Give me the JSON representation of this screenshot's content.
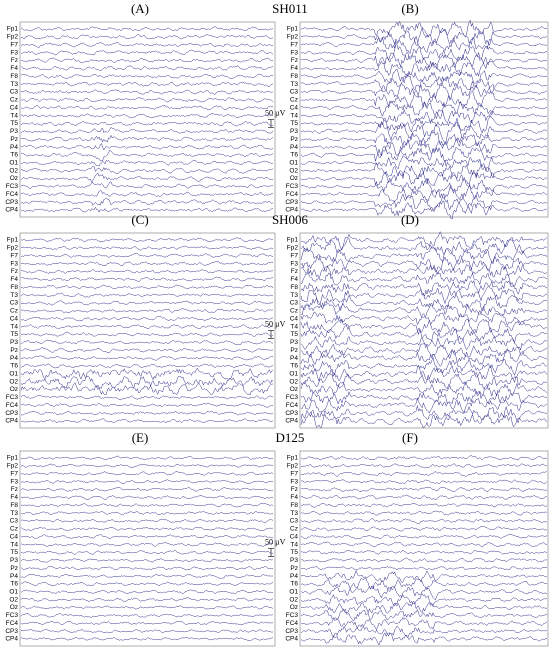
{
  "figure": {
    "rows": [
      {
        "title": "SH011",
        "panels": [
          {
            "label": "(A)"
          },
          {
            "label": "(B)"
          }
        ]
      },
      {
        "title": "SH006",
        "panels": [
          {
            "label": "(C)"
          },
          {
            "label": "(D)"
          }
        ]
      },
      {
        "title": "D125",
        "panels": [
          {
            "label": "(E)"
          },
          {
            "label": "(F)"
          }
        ]
      }
    ],
    "scale_bar": "50 µV",
    "channels": [
      "Fp1",
      "Fp2",
      "F7",
      "F3",
      "Fz",
      "F4",
      "F8",
      "T3",
      "C3",
      "Cz",
      "C4",
      "T4",
      "T5",
      "P3",
      "Pz",
      "P4",
      "T6",
      "O1",
      "O2",
      "Oz",
      "FC3",
      "FC4",
      "CP3",
      "CP4"
    ]
  }
}
